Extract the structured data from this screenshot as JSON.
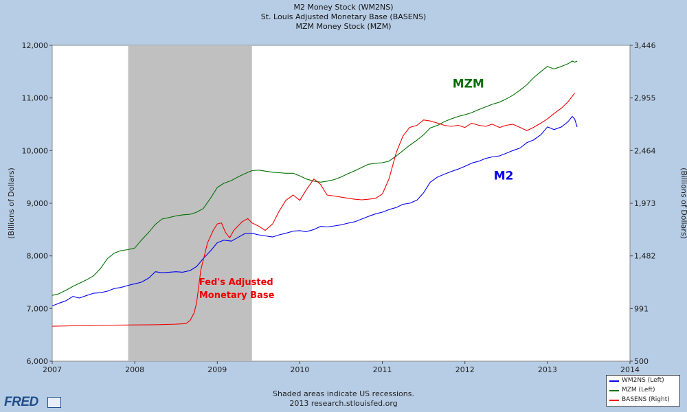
{
  "titles": [
    "M2 Money Stock (WM2NS)",
    "St. Louis Adjusted Monetary Base (BASENS)",
    "MZM Money Stock (MZM)"
  ],
  "footer": {
    "line1": "Shaded areas indicate US recessions.",
    "line2": "2013 research.stlouisfed.org"
  },
  "logo": {
    "text": "FRED"
  },
  "legend": [
    {
      "label": "WM2NS (Left)",
      "color": "#0000ee"
    },
    {
      "label": "MZM (Left)",
      "color": "#007000"
    },
    {
      "label": "BASENS (Right)",
      "color": "#ee0000"
    }
  ],
  "chart_data": {
    "type": "line",
    "x_range": [
      2007,
      2014
    ],
    "x_ticks": [
      "2007",
      "2008",
      "2009",
      "2010",
      "2011",
      "2012",
      "2013",
      "2014"
    ],
    "left_axis": {
      "label": "(Billions of Dollars)",
      "range": [
        6000,
        12000
      ],
      "ticks": [
        "6,000",
        "7,000",
        "8,000",
        "9,000",
        "10,000",
        "11,000",
        "12,000"
      ]
    },
    "right_axis": {
      "label": "(Billions of Dollars)",
      "range": [
        500,
        3446
      ],
      "ticks": [
        "500",
        "991",
        "1,482",
        "1,973",
        "2,464",
        "2,955",
        "3,446"
      ]
    },
    "recession": {
      "start": 2007.92,
      "end": 2009.42
    },
    "annotations": [
      {
        "text": "MZM",
        "color": "#007000",
        "at": [
          2011.85,
          11200
        ]
      },
      {
        "text": "M2",
        "color": "#0000ee",
        "at": [
          2012.35,
          9450
        ]
      },
      {
        "text": "Fed's Adjusted",
        "color": "#ee0000",
        "at": [
          2008.78,
          7450
        ]
      },
      {
        "text": "Monetary Base",
        "color": "#ee0000",
        "at": [
          2008.78,
          7200
        ]
      }
    ],
    "series": [
      {
        "name": "WM2NS",
        "axis": "left",
        "color": "#0000ee",
        "points": [
          [
            2007.0,
            7050
          ],
          [
            2007.08,
            7100
          ],
          [
            2007.17,
            7150
          ],
          [
            2007.25,
            7230
          ],
          [
            2007.33,
            7200
          ],
          [
            2007.42,
            7250
          ],
          [
            2007.5,
            7290
          ],
          [
            2007.58,
            7300
          ],
          [
            2007.67,
            7330
          ],
          [
            2007.75,
            7380
          ],
          [
            2007.83,
            7400
          ],
          [
            2007.92,
            7440
          ],
          [
            2008.0,
            7470
          ],
          [
            2008.08,
            7500
          ],
          [
            2008.17,
            7580
          ],
          [
            2008.25,
            7700
          ],
          [
            2008.33,
            7680
          ],
          [
            2008.42,
            7690
          ],
          [
            2008.5,
            7700
          ],
          [
            2008.58,
            7690
          ],
          [
            2008.67,
            7720
          ],
          [
            2008.75,
            7800
          ],
          [
            2008.83,
            7950
          ],
          [
            2008.92,
            8100
          ],
          [
            2009.0,
            8250
          ],
          [
            2009.08,
            8300
          ],
          [
            2009.17,
            8280
          ],
          [
            2009.25,
            8350
          ],
          [
            2009.33,
            8420
          ],
          [
            2009.42,
            8430
          ],
          [
            2009.5,
            8400
          ],
          [
            2009.58,
            8380
          ],
          [
            2009.67,
            8360
          ],
          [
            2009.75,
            8400
          ],
          [
            2009.83,
            8430
          ],
          [
            2009.92,
            8470
          ],
          [
            2010.0,
            8480
          ],
          [
            2010.08,
            8460
          ],
          [
            2010.17,
            8500
          ],
          [
            2010.25,
            8560
          ],
          [
            2010.33,
            8550
          ],
          [
            2010.42,
            8570
          ],
          [
            2010.5,
            8590
          ],
          [
            2010.58,
            8620
          ],
          [
            2010.67,
            8650
          ],
          [
            2010.75,
            8700
          ],
          [
            2010.83,
            8750
          ],
          [
            2010.92,
            8800
          ],
          [
            2011.0,
            8830
          ],
          [
            2011.08,
            8880
          ],
          [
            2011.17,
            8920
          ],
          [
            2011.25,
            8980
          ],
          [
            2011.33,
            9000
          ],
          [
            2011.42,
            9060
          ],
          [
            2011.5,
            9200
          ],
          [
            2011.58,
            9400
          ],
          [
            2011.67,
            9500
          ],
          [
            2011.75,
            9550
          ],
          [
            2011.83,
            9600
          ],
          [
            2011.92,
            9650
          ],
          [
            2012.0,
            9700
          ],
          [
            2012.08,
            9760
          ],
          [
            2012.17,
            9800
          ],
          [
            2012.25,
            9850
          ],
          [
            2012.33,
            9880
          ],
          [
            2012.42,
            9900
          ],
          [
            2012.5,
            9950
          ],
          [
            2012.58,
            10000
          ],
          [
            2012.67,
            10050
          ],
          [
            2012.75,
            10150
          ],
          [
            2012.83,
            10200
          ],
          [
            2012.92,
            10300
          ],
          [
            2013.0,
            10450
          ],
          [
            2013.08,
            10400
          ],
          [
            2013.17,
            10450
          ],
          [
            2013.25,
            10550
          ],
          [
            2013.3,
            10650
          ],
          [
            2013.33,
            10600
          ],
          [
            2013.36,
            10450
          ]
        ]
      },
      {
        "name": "MZM",
        "axis": "left",
        "color": "#007000",
        "points": [
          [
            2007.0,
            7250
          ],
          [
            2007.08,
            7280
          ],
          [
            2007.17,
            7350
          ],
          [
            2007.25,
            7420
          ],
          [
            2007.33,
            7480
          ],
          [
            2007.42,
            7550
          ],
          [
            2007.5,
            7620
          ],
          [
            2007.58,
            7750
          ],
          [
            2007.67,
            7950
          ],
          [
            2007.75,
            8050
          ],
          [
            2007.83,
            8100
          ],
          [
            2007.92,
            8120
          ],
          [
            2008.0,
            8150
          ],
          [
            2008.08,
            8300
          ],
          [
            2008.17,
            8450
          ],
          [
            2008.25,
            8600
          ],
          [
            2008.33,
            8700
          ],
          [
            2008.42,
            8730
          ],
          [
            2008.5,
            8760
          ],
          [
            2008.58,
            8780
          ],
          [
            2008.67,
            8790
          ],
          [
            2008.75,
            8830
          ],
          [
            2008.83,
            8900
          ],
          [
            2008.92,
            9100
          ],
          [
            2009.0,
            9300
          ],
          [
            2009.08,
            9380
          ],
          [
            2009.17,
            9430
          ],
          [
            2009.25,
            9500
          ],
          [
            2009.33,
            9560
          ],
          [
            2009.42,
            9620
          ],
          [
            2009.5,
            9630
          ],
          [
            2009.58,
            9610
          ],
          [
            2009.67,
            9590
          ],
          [
            2009.75,
            9580
          ],
          [
            2009.83,
            9570
          ],
          [
            2009.92,
            9570
          ],
          [
            2010.0,
            9520
          ],
          [
            2010.08,
            9460
          ],
          [
            2010.17,
            9420
          ],
          [
            2010.25,
            9400
          ],
          [
            2010.33,
            9420
          ],
          [
            2010.42,
            9450
          ],
          [
            2010.5,
            9500
          ],
          [
            2010.58,
            9560
          ],
          [
            2010.67,
            9620
          ],
          [
            2010.75,
            9680
          ],
          [
            2010.83,
            9740
          ],
          [
            2010.92,
            9760
          ],
          [
            2011.0,
            9770
          ],
          [
            2011.08,
            9800
          ],
          [
            2011.17,
            9900
          ],
          [
            2011.25,
            10000
          ],
          [
            2011.33,
            10100
          ],
          [
            2011.42,
            10200
          ],
          [
            2011.5,
            10300
          ],
          [
            2011.58,
            10430
          ],
          [
            2011.67,
            10480
          ],
          [
            2011.75,
            10550
          ],
          [
            2011.83,
            10600
          ],
          [
            2011.92,
            10650
          ],
          [
            2012.0,
            10680
          ],
          [
            2012.08,
            10720
          ],
          [
            2012.17,
            10780
          ],
          [
            2012.25,
            10830
          ],
          [
            2012.33,
            10880
          ],
          [
            2012.42,
            10920
          ],
          [
            2012.5,
            10980
          ],
          [
            2012.58,
            11050
          ],
          [
            2012.67,
            11150
          ],
          [
            2012.75,
            11250
          ],
          [
            2012.83,
            11380
          ],
          [
            2012.92,
            11500
          ],
          [
            2013.0,
            11600
          ],
          [
            2013.08,
            11550
          ],
          [
            2013.17,
            11600
          ],
          [
            2013.25,
            11650
          ],
          [
            2013.3,
            11700
          ],
          [
            2013.33,
            11680
          ],
          [
            2013.36,
            11700
          ]
        ]
      },
      {
        "name": "BASENS",
        "axis": "right",
        "color": "#ee0000",
        "points": [
          [
            2007.0,
            826
          ],
          [
            2007.25,
            830
          ],
          [
            2007.5,
            833
          ],
          [
            2007.75,
            836
          ],
          [
            2008.0,
            838
          ],
          [
            2008.25,
            840
          ],
          [
            2008.5,
            845
          ],
          [
            2008.62,
            850
          ],
          [
            2008.67,
            880
          ],
          [
            2008.72,
            950
          ],
          [
            2008.75,
            1050
          ],
          [
            2008.8,
            1350
          ],
          [
            2008.88,
            1600
          ],
          [
            2008.95,
            1720
          ],
          [
            2009.0,
            1780
          ],
          [
            2009.05,
            1790
          ],
          [
            2009.1,
            1700
          ],
          [
            2009.15,
            1650
          ],
          [
            2009.2,
            1720
          ],
          [
            2009.3,
            1800
          ],
          [
            2009.37,
            1830
          ],
          [
            2009.42,
            1790
          ],
          [
            2009.5,
            1760
          ],
          [
            2009.58,
            1720
          ],
          [
            2009.67,
            1780
          ],
          [
            2009.75,
            1900
          ],
          [
            2009.83,
            2000
          ],
          [
            2009.92,
            2050
          ],
          [
            2010.0,
            2000
          ],
          [
            2010.08,
            2100
          ],
          [
            2010.17,
            2200
          ],
          [
            2010.25,
            2150
          ],
          [
            2010.33,
            2050
          ],
          [
            2010.42,
            2040
          ],
          [
            2010.5,
            2030
          ],
          [
            2010.58,
            2020
          ],
          [
            2010.67,
            2010
          ],
          [
            2010.75,
            2005
          ],
          [
            2010.83,
            2010
          ],
          [
            2010.92,
            2020
          ],
          [
            2011.0,
            2060
          ],
          [
            2011.08,
            2200
          ],
          [
            2011.17,
            2450
          ],
          [
            2011.25,
            2600
          ],
          [
            2011.33,
            2680
          ],
          [
            2011.42,
            2700
          ],
          [
            2011.5,
            2750
          ],
          [
            2011.58,
            2740
          ],
          [
            2011.67,
            2720
          ],
          [
            2011.75,
            2700
          ],
          [
            2011.83,
            2690
          ],
          [
            2011.92,
            2700
          ],
          [
            2012.0,
            2680
          ],
          [
            2012.08,
            2720
          ],
          [
            2012.17,
            2700
          ],
          [
            2012.25,
            2690
          ],
          [
            2012.33,
            2710
          ],
          [
            2012.42,
            2680
          ],
          [
            2012.5,
            2700
          ],
          [
            2012.58,
            2710
          ],
          [
            2012.67,
            2680
          ],
          [
            2012.75,
            2650
          ],
          [
            2012.83,
            2680
          ],
          [
            2012.92,
            2720
          ],
          [
            2013.0,
            2760
          ],
          [
            2013.08,
            2810
          ],
          [
            2013.17,
            2860
          ],
          [
            2013.25,
            2920
          ],
          [
            2013.3,
            2970
          ],
          [
            2013.33,
            3000
          ]
        ]
      }
    ]
  }
}
